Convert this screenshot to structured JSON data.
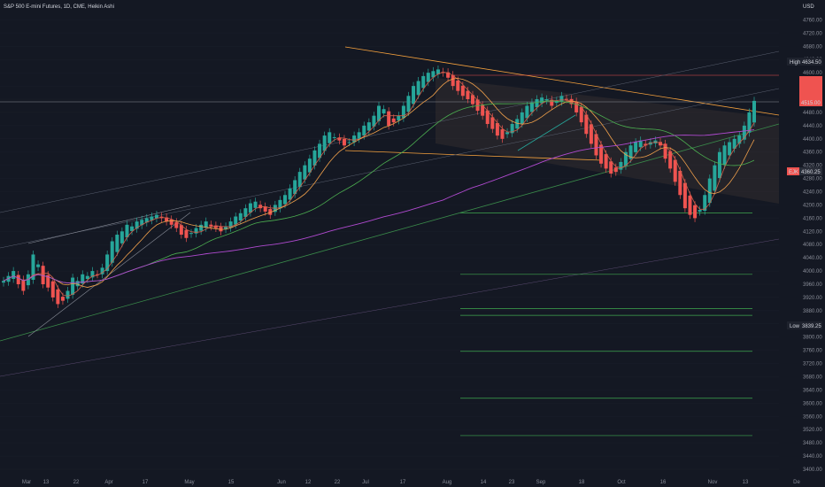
{
  "header": {
    "title": "S&P 500 E-mini Futures, 1D, CME, Heikin Ashi",
    "currency": "USD"
  },
  "colors": {
    "up": "#26a69a",
    "down": "#ef5350",
    "background": "#141823",
    "ma_orange": "#f0a04b",
    "ma_green": "#4caf50",
    "ma_purple": "#b04ad0",
    "trend": "#f5a13d"
  },
  "markers": {
    "high_label": "High",
    "high_value": "4634.50",
    "low_label": "Low",
    "low_value": "3839.25",
    "current_value": "4515.00",
    "flag_label": "EJK",
    "flag_value": "4360.25"
  },
  "chart_data": {
    "type": "candlestick",
    "title": "S&P 500 E-mini Futures, 1D, CME, Heikin Ashi",
    "yaxis_ticks": [
      4760,
      4720,
      4680,
      4640,
      4600,
      4560,
      4520,
      4480,
      4440,
      4400,
      4360,
      4320,
      4280,
      4240,
      4200,
      4160,
      4120,
      4080,
      4040,
      4000,
      3960,
      3920,
      3880,
      3840,
      3800,
      3760,
      3720,
      3680,
      3640,
      3600,
      3560,
      3520,
      3480,
      3440,
      3400
    ],
    "ylim": [
      3400,
      4780
    ],
    "xaxis_ticks": [
      "Mar",
      "13",
      "22",
      "Apr",
      "17",
      "May",
      "15",
      "Jun",
      "12",
      "22",
      "Jul",
      "17",
      "Aug",
      "14",
      "23",
      "Sep",
      "18",
      "Oct",
      "16",
      "Nov",
      "13",
      "De"
    ],
    "close_series": [
      3970,
      3985,
      4000,
      3960,
      3940,
      3990,
      4050,
      4020,
      3960,
      3950,
      3920,
      3900,
      3910,
      3940,
      3980,
      3970,
      3990,
      3985,
      4000,
      3990,
      4010,
      4050,
      4090,
      4110,
      4120,
      4140,
      4135,
      4150,
      4155,
      4160,
      4165,
      4170,
      4160,
      4150,
      4140,
      4130,
      4110,
      4100,
      4115,
      4130,
      4140,
      4150,
      4135,
      4130,
      4120,
      4135,
      4150,
      4165,
      4175,
      4190,
      4205,
      4210,
      4190,
      4180,
      4170,
      4200,
      4215,
      4230,
      4250,
      4275,
      4300,
      4320,
      4340,
      4365,
      4385,
      4410,
      4420,
      4405,
      4395,
      4380,
      4390,
      4410,
      4420,
      4440,
      4450,
      4470,
      4500,
      4490,
      4440,
      4450,
      4470,
      4500,
      4530,
      4560,
      4575,
      4590,
      4600,
      4605,
      4610,
      4600,
      4585,
      4560,
      4545,
      4530,
      4520,
      4505,
      4485,
      4470,
      4445,
      4430,
      4410,
      4400,
      4420,
      4445,
      4460,
      4480,
      4500,
      4510,
      4520,
      4525,
      4520,
      4500,
      4515,
      4530,
      4520,
      4505,
      4480,
      4450,
      4415,
      4385,
      4350,
      4325,
      4310,
      4295,
      4300,
      4330,
      4360,
      4380,
      4390,
      4395,
      4380,
      4390,
      4395,
      4380,
      4340,
      4310,
      4270,
      4230,
      4190,
      4170,
      4160,
      4185,
      4230,
      4280,
      4320,
      4360,
      4380,
      4390,
      4400,
      4410,
      4440,
      4480,
      4515
    ],
    "levels": [
      4176,
      3990,
      3886,
      3866,
      3757,
      3615,
      3502
    ],
    "trendlines": "descending channel from July high (~4610) sloping to (~4440) and parallel lower boundary; ascending long-term channel lines"
  }
}
